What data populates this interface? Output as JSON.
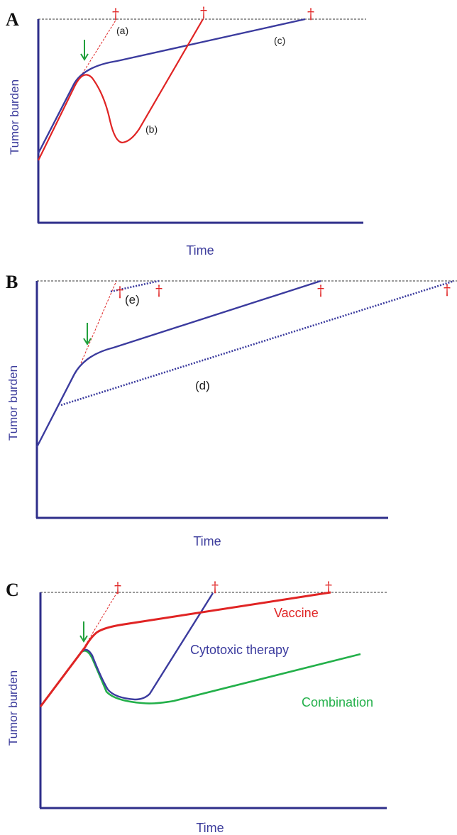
{
  "colors": {
    "axis": "#2e2e8a",
    "blue": "#3b3b9e",
    "red": "#e02424",
    "green": "#23b04a",
    "arrow": "#21a03c",
    "death_line": "#333333"
  },
  "panels": [
    {
      "letter": "A",
      "y_axis_label": "Tumor burden",
      "x_axis_label": "Time",
      "curve_labels": [
        "(a)",
        "(b)",
        "(c)"
      ],
      "death_markers": [
        "†",
        "†",
        "†"
      ]
    },
    {
      "letter": "B",
      "y_axis_label": "Tumor burden",
      "x_axis_label": "Time",
      "curve_labels": [
        "(e)",
        "(d)"
      ],
      "death_markers": [
        "†",
        "†",
        "†",
        "†"
      ]
    },
    {
      "letter": "C",
      "y_axis_label": "Tumor burden",
      "x_axis_label": "Time",
      "series_labels": [
        "Vaccine",
        "Cytotoxic therapy",
        "Combination"
      ],
      "death_markers": [
        "†",
        "†",
        "†"
      ]
    }
  ],
  "icons": {
    "treatment_arrow": "down-arrow-icon",
    "death_marker": "dagger-icon"
  }
}
